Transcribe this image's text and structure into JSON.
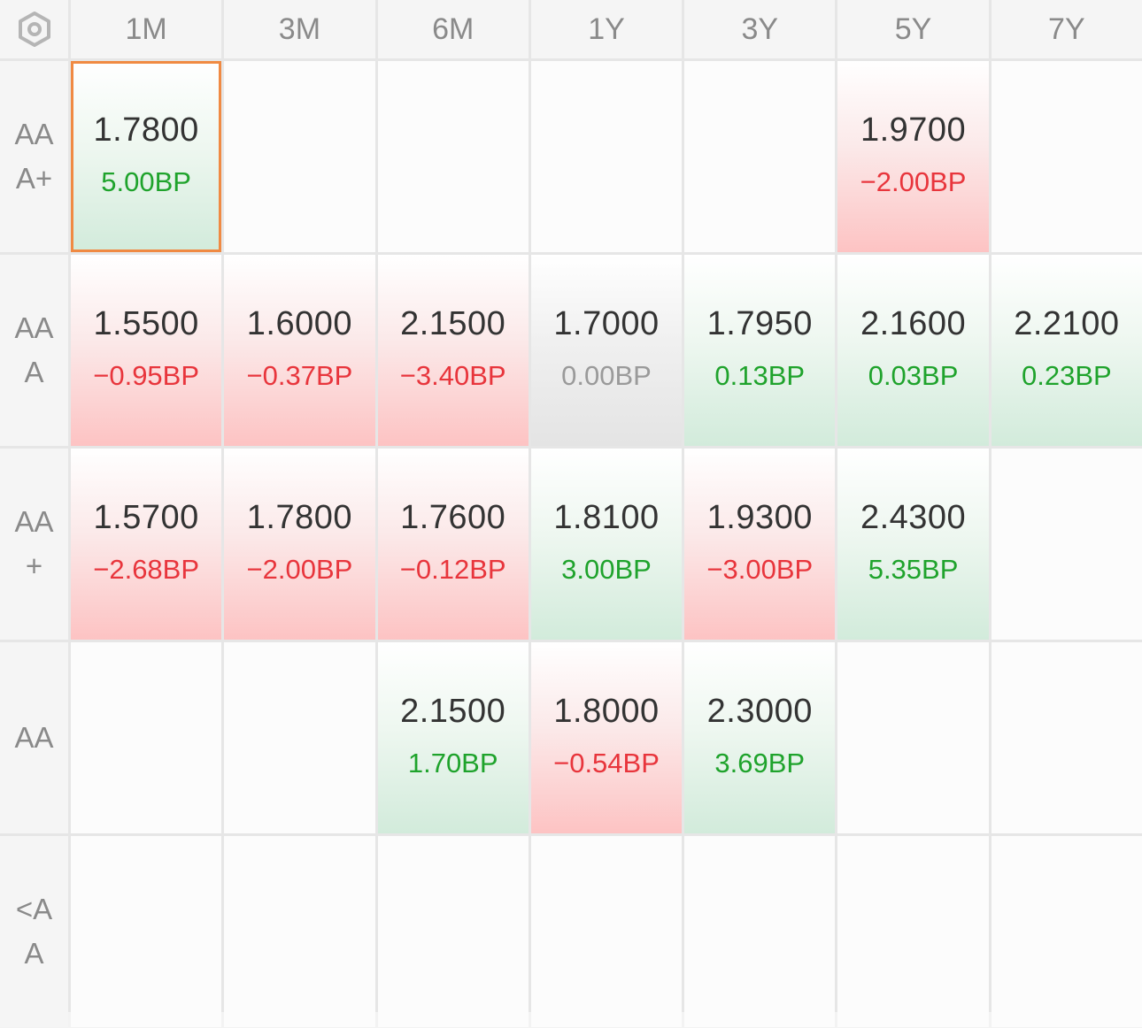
{
  "corner": {
    "icon": "settings-hex-icon"
  },
  "columns": [
    "1M",
    "3M",
    "6M",
    "1Y",
    "3Y",
    "5Y",
    "7Y"
  ],
  "rows": [
    {
      "label": "AAA+",
      "cells": [
        {
          "rate": "1.7800",
          "change": "5.00BP",
          "trend": "down",
          "sign": "pos",
          "selected": true
        },
        null,
        null,
        null,
        null,
        {
          "rate": "1.9700",
          "change": "−2.00BP",
          "trend": "up",
          "sign": "neg"
        },
        null
      ]
    },
    {
      "label": "AAA",
      "cells": [
        {
          "rate": "1.5500",
          "change": "−0.95BP",
          "trend": "up",
          "sign": "neg"
        },
        {
          "rate": "1.6000",
          "change": "−0.37BP",
          "trend": "up",
          "sign": "neg"
        },
        {
          "rate": "2.1500",
          "change": "−3.40BP",
          "trend": "up",
          "sign": "neg"
        },
        {
          "rate": "1.7000",
          "change": "0.00BP",
          "trend": "flat",
          "sign": "zero"
        },
        {
          "rate": "1.7950",
          "change": "0.13BP",
          "trend": "down",
          "sign": "pos"
        },
        {
          "rate": "2.1600",
          "change": "0.03BP",
          "trend": "down",
          "sign": "pos"
        },
        {
          "rate": "2.2100",
          "change": "0.23BP",
          "trend": "down",
          "sign": "pos"
        }
      ]
    },
    {
      "label": "AA+",
      "cells": [
        {
          "rate": "1.5700",
          "change": "−2.68BP",
          "trend": "up",
          "sign": "neg"
        },
        {
          "rate": "1.7800",
          "change": "−2.00BP",
          "trend": "up",
          "sign": "neg"
        },
        {
          "rate": "1.7600",
          "change": "−0.12BP",
          "trend": "up",
          "sign": "neg"
        },
        {
          "rate": "1.8100",
          "change": "3.00BP",
          "trend": "down",
          "sign": "pos"
        },
        {
          "rate": "1.9300",
          "change": "−3.00BP",
          "trend": "up",
          "sign": "neg"
        },
        {
          "rate": "2.4300",
          "change": "5.35BP",
          "trend": "down",
          "sign": "pos"
        },
        null
      ]
    },
    {
      "label": "AA",
      "cells": [
        null,
        null,
        {
          "rate": "2.1500",
          "change": "1.70BP",
          "trend": "down",
          "sign": "pos"
        },
        {
          "rate": "1.8000",
          "change": "−0.54BP",
          "trend": "up",
          "sign": "neg"
        },
        {
          "rate": "2.3000",
          "change": "3.69BP",
          "trend": "down",
          "sign": "pos"
        },
        null,
        null
      ]
    },
    {
      "label": "<AA",
      "cells": [
        null,
        null,
        null,
        null,
        null,
        null,
        null
      ]
    }
  ]
}
